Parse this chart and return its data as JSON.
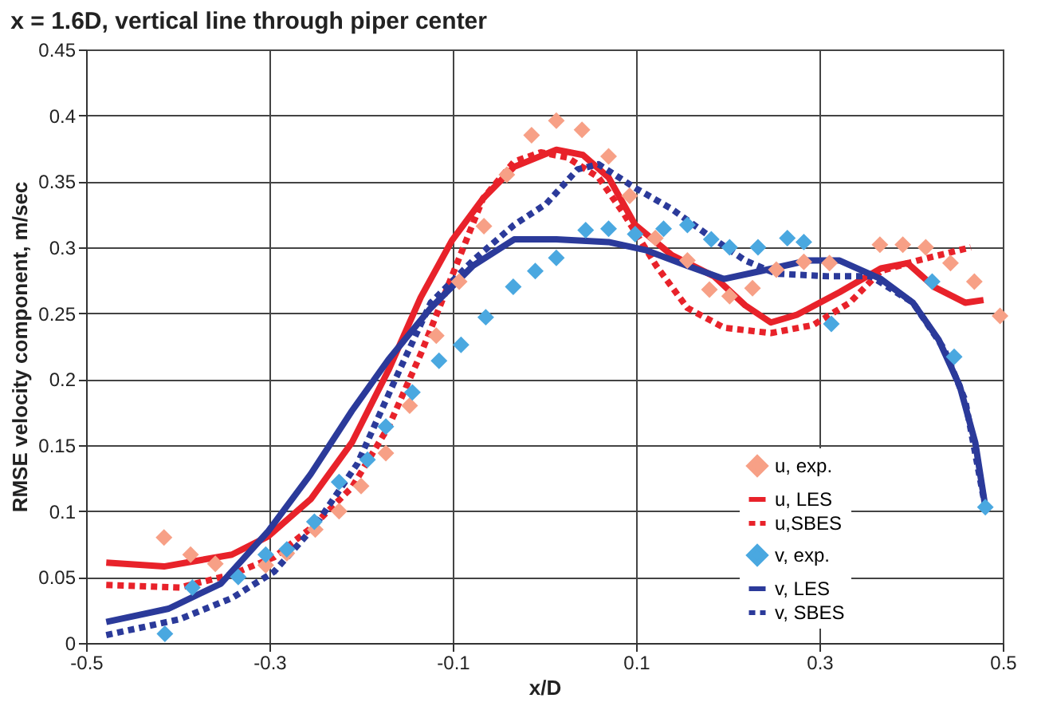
{
  "chart_data": {
    "type": "line",
    "title": "x = 1.6D, vertical line through piper center",
    "xlabel": "x/D",
    "ylabel": "RMSE velocity component, m/sec",
    "xlim": [
      -0.5,
      0.5
    ],
    "xticks": [
      -0.5,
      -0.3,
      -0.1,
      0.1,
      0.3,
      0.5
    ],
    "ylim": [
      0,
      0.45
    ],
    "yticks": [
      0,
      0.05,
      0.1,
      0.15,
      0.2,
      0.25,
      0.3,
      0.35,
      0.4,
      0.45
    ],
    "grid": true,
    "legend": "bottom right",
    "series": [
      {
        "name": "u, exp.",
        "type": "scatter",
        "marker": "diamond",
        "color": "#f7a086",
        "x": [
          -0.415,
          -0.386,
          -0.359,
          -0.304,
          -0.281,
          -0.25,
          -0.224,
          -0.2,
          -0.173,
          -0.147,
          -0.118,
          -0.093,
          -0.066,
          -0.041,
          -0.014,
          0.013,
          0.041,
          0.07,
          0.093,
          0.121,
          0.156,
          0.18,
          0.202,
          0.227,
          0.253,
          0.283,
          0.311,
          0.366,
          0.391,
          0.416,
          0.443,
          0.469,
          0.497
        ],
        "values": [
          0.08,
          0.067,
          0.06,
          0.059,
          0.068,
          0.086,
          0.1,
          0.119,
          0.144,
          0.18,
          0.233,
          0.274,
          0.316,
          0.355,
          0.385,
          0.396,
          0.389,
          0.369,
          0.339,
          0.307,
          0.29,
          0.268,
          0.263,
          0.269,
          0.283,
          0.289,
          0.288,
          0.302,
          0.302,
          0.3,
          0.288,
          0.274,
          0.248
        ]
      },
      {
        "name": "u, LES",
        "type": "line",
        "line_style": "solid",
        "marker": "none",
        "color": "#e8222a",
        "x": [
          -0.478,
          -0.415,
          -0.341,
          -0.301,
          -0.255,
          -0.21,
          -0.17,
          -0.135,
          -0.101,
          -0.067,
          -0.033,
          0.013,
          0.042,
          0.07,
          0.099,
          0.139,
          0.185,
          0.219,
          0.247,
          0.276,
          0.322,
          0.367,
          0.396,
          0.425,
          0.459,
          0.479
        ],
        "values": [
          0.061,
          0.058,
          0.067,
          0.081,
          0.109,
          0.152,
          0.207,
          0.262,
          0.305,
          0.337,
          0.361,
          0.374,
          0.37,
          0.353,
          0.317,
          0.294,
          0.278,
          0.256,
          0.243,
          0.249,
          0.266,
          0.284,
          0.288,
          0.27,
          0.258,
          0.26
        ]
      },
      {
        "name": "u,SBES",
        "type": "line",
        "line_style": "dotted",
        "marker": "none",
        "color": "#e8222a",
        "x": [
          -0.478,
          -0.398,
          -0.341,
          -0.295,
          -0.255,
          -0.21,
          -0.17,
          -0.135,
          -0.101,
          -0.067,
          -0.033,
          -0.004,
          0.025,
          0.059,
          0.087,
          0.122,
          0.156,
          0.196,
          0.247,
          0.293,
          0.333,
          0.367,
          0.407,
          0.442,
          0.465
        ],
        "values": [
          0.044,
          0.042,
          0.052,
          0.065,
          0.087,
          0.118,
          0.164,
          0.219,
          0.278,
          0.337,
          0.365,
          0.372,
          0.368,
          0.353,
          0.325,
          0.286,
          0.254,
          0.239,
          0.235,
          0.241,
          0.258,
          0.282,
          0.29,
          0.296,
          0.3
        ]
      },
      {
        "name": "v, exp.",
        "type": "scatter",
        "marker": "diamond",
        "color": "#4aa8e0",
        "x": [
          -0.414,
          -0.384,
          -0.334,
          -0.304,
          -0.281,
          -0.251,
          -0.224,
          -0.193,
          -0.173,
          -0.144,
          -0.115,
          -0.091,
          -0.064,
          -0.034,
          -0.01,
          0.013,
          0.045,
          0.07,
          0.099,
          0.13,
          0.156,
          0.182,
          0.202,
          0.233,
          0.265,
          0.283,
          0.313,
          0.423,
          0.447,
          0.481
        ],
        "values": [
          0.007,
          0.042,
          0.05,
          0.067,
          0.071,
          0.092,
          0.122,
          0.139,
          0.164,
          0.19,
          0.214,
          0.226,
          0.247,
          0.27,
          0.282,
          0.292,
          0.313,
          0.314,
          0.31,
          0.314,
          0.317,
          0.306,
          0.3,
          0.3,
          0.307,
          0.304,
          0.242,
          0.274,
          0.217,
          0.103
        ]
      },
      {
        "name": "v, LES",
        "type": "line",
        "line_style": "solid",
        "marker": "none",
        "color": "#2b3a9a",
        "x": [
          -0.478,
          -0.41,
          -0.353,
          -0.301,
          -0.255,
          -0.21,
          -0.17,
          -0.124,
          -0.078,
          -0.033,
          0.013,
          0.07,
          0.11,
          0.156,
          0.196,
          0.236,
          0.287,
          0.322,
          0.367,
          0.402,
          0.43,
          0.453,
          0.47,
          0.481
        ],
        "values": [
          0.016,
          0.026,
          0.045,
          0.085,
          0.128,
          0.176,
          0.215,
          0.254,
          0.286,
          0.306,
          0.306,
          0.304,
          0.298,
          0.286,
          0.276,
          0.282,
          0.29,
          0.29,
          0.276,
          0.258,
          0.23,
          0.195,
          0.152,
          0.103
        ]
      },
      {
        "name": "v, SBES",
        "type": "line",
        "line_style": "dotted",
        "marker": "none",
        "color": "#2b3a9a",
        "x": [
          -0.478,
          -0.398,
          -0.341,
          -0.295,
          -0.25,
          -0.204,
          -0.158,
          -0.124,
          -0.078,
          -0.033,
          0.002,
          0.036,
          0.059,
          0.099,
          0.139,
          0.179,
          0.219,
          0.253,
          0.31,
          0.356,
          0.402,
          0.436,
          0.459,
          0.481
        ],
        "values": [
          0.006,
          0.018,
          0.034,
          0.054,
          0.089,
          0.136,
          0.207,
          0.258,
          0.29,
          0.317,
          0.333,
          0.359,
          0.363,
          0.345,
          0.329,
          0.309,
          0.29,
          0.28,
          0.278,
          0.278,
          0.258,
          0.223,
          0.184,
          0.103
        ]
      }
    ]
  }
}
